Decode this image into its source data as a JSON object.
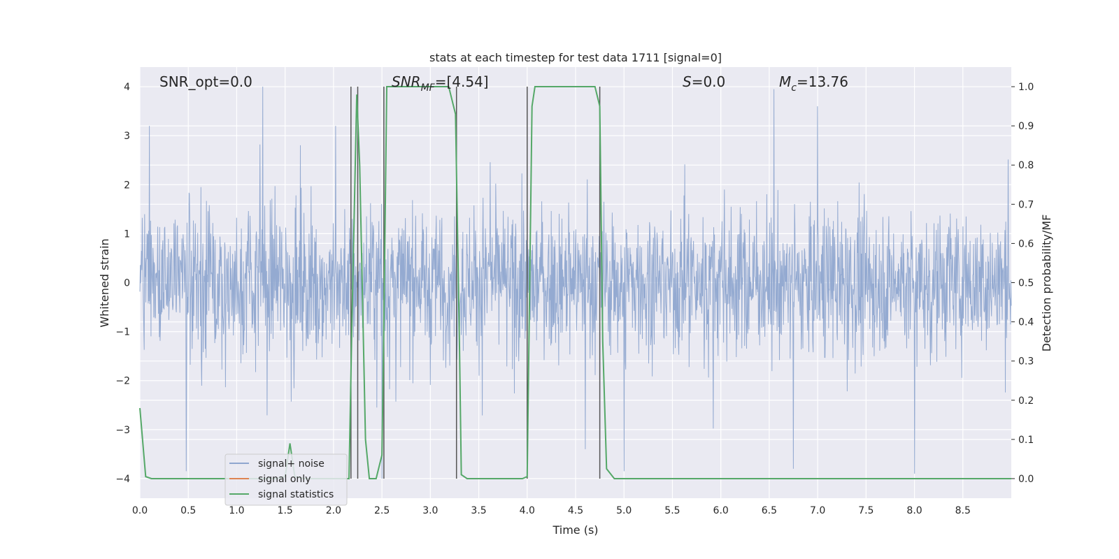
{
  "chart_data": {
    "type": "line",
    "title": "stats at each timestep for test data 1711 [signal=0]",
    "xlabel": "Time (s)",
    "ylabel_left": "Whitened strain",
    "ylabel_right": "Detection probability/MF",
    "xlim": [
      0,
      9.0
    ],
    "ylim_left": [
      -4.4,
      4.4
    ],
    "ylim_right": [
      -0.05,
      1.05
    ],
    "x_ticks": [
      "0.0",
      "0.5",
      "1.0",
      "1.5",
      "2.0",
      "2.5",
      "3.0",
      "3.5",
      "4.0",
      "4.5",
      "5.0",
      "5.5",
      "6.0",
      "6.5",
      "7.0",
      "7.5",
      "8.0",
      "8.5"
    ],
    "y_ticks_left": [
      "4",
      "3",
      "2",
      "1",
      "0",
      "−1",
      "−2",
      "−3",
      "−4"
    ],
    "y_ticks_right": [
      "1.0",
      "0.9",
      "0.8",
      "0.7",
      "0.6",
      "0.5",
      "0.4",
      "0.3",
      "0.2",
      "0.1",
      "0.0"
    ],
    "annotations": {
      "snr_opt": "SNR_opt=0.0",
      "snr_mf_prefix": "SNR",
      "snr_mf_sub": "MF",
      "snr_mf_value": "=[4.54]",
      "s_symbol": "S",
      "s_value": "=0.0",
      "mc_symbol": "M",
      "mc_sub": "c",
      "mc_value": "=13.76"
    },
    "grid": true,
    "legend_position": "lower-left",
    "legend": [
      "signal+ noise",
      "signal only",
      "signal statistics"
    ],
    "colors": {
      "signal_noise": "#8fa6cf",
      "signal_only": "#dd8452",
      "signal_statistics": "#55a868",
      "vlines": "#555555",
      "background": "#eaeaf2"
    },
    "series": [
      {
        "name": "signal+ noise",
        "axis": "left",
        "description_kind": "noise",
        "envelope_typical": 2.0,
        "peaks": [
          [
            1.27,
            4.0
          ],
          [
            2.5,
            -4.0
          ],
          [
            6.55,
            3.95
          ],
          [
            7.0,
            3.6
          ],
          [
            6.75,
            -3.8
          ],
          [
            8.0,
            -3.9
          ],
          [
            0.48,
            -3.85
          ],
          [
            5.0,
            -3.85
          ],
          [
            4.6,
            -3.4
          ],
          [
            0.1,
            3.2
          ],
          [
            2.02,
            3.2
          ]
        ]
      },
      {
        "name": "signal only",
        "axis": "left",
        "values": []
      },
      {
        "name": "signal statistics",
        "axis": "right",
        "x": [
          0.0,
          0.06,
          0.12,
          0.5,
          1.0,
          1.4,
          1.5,
          1.55,
          1.6,
          1.7,
          2.0,
          2.1,
          2.16,
          2.19,
          2.24,
          2.27,
          2.33,
          2.37,
          2.44,
          2.5,
          2.52,
          2.55,
          2.58,
          3.19,
          3.26,
          3.3,
          3.32,
          3.38,
          3.95,
          4.0,
          4.05,
          4.08,
          4.12,
          4.7,
          4.75,
          4.78,
          4.82,
          4.9,
          5.0,
          6.0,
          7.0,
          8.0,
          9.0
        ],
        "y": [
          0.18,
          0.005,
          0.0,
          0.0,
          0.0,
          0.0,
          0.005,
          0.09,
          0.005,
          0.0,
          0.0,
          0.0,
          0.0,
          0.4,
          0.98,
          0.8,
          0.1,
          0.0,
          0.0,
          0.06,
          0.4,
          1.0,
          1.0,
          1.0,
          0.93,
          0.35,
          0.01,
          0.0,
          0.0,
          0.005,
          0.95,
          1.0,
          1.0,
          1.0,
          0.95,
          0.35,
          0.025,
          0.0,
          0.0,
          0.0,
          0.0,
          0.0,
          0.0
        ]
      }
    ],
    "vertical_lines_x": [
      2.18,
      2.25,
      2.52,
      3.27,
      4.0,
      4.75
    ]
  }
}
